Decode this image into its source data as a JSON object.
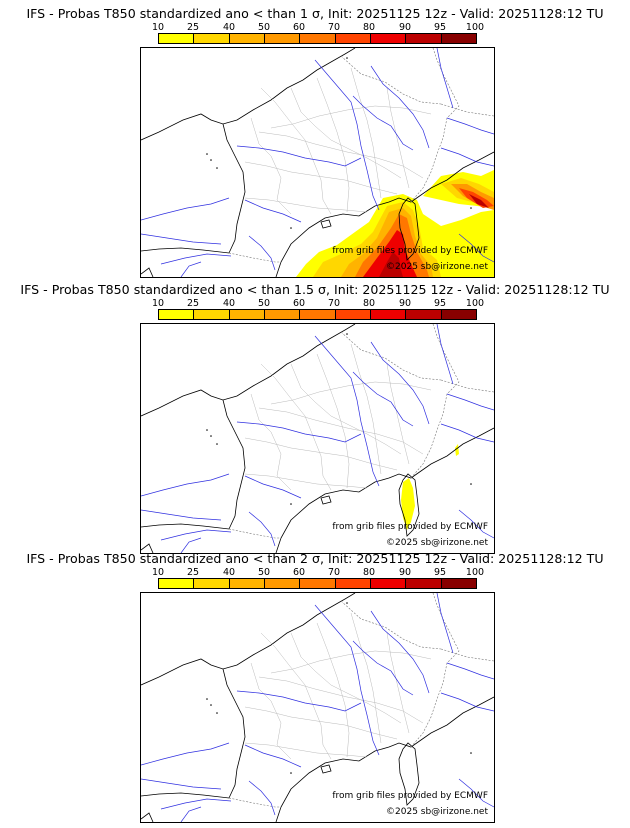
{
  "colorbar": {
    "ticks": [
      "10",
      "25",
      "40",
      "50",
      "60",
      "70",
      "80",
      "90",
      "95",
      "100"
    ],
    "colors": [
      "#ffff00",
      "#ffd700",
      "#ffb300",
      "#ff9900",
      "#ff7700",
      "#ff4400",
      "#ee0000",
      "#bb0000",
      "#880000"
    ]
  },
  "panels": [
    {
      "title": "IFS - Probas T850  standardized ano < than 1 σ, Init: 20251125 12z - Valid: 20251128:12 TU",
      "map": {
        "source_credit": "from grib files provided by ECMWF",
        "copyright": "©2025 sb@irizone.net"
      }
    },
    {
      "title": "IFS - Probas T850  standardized ano < than 1.5 σ, Init: 20251125 12z - Valid: 20251128:12 TU",
      "map": {
        "source_credit": "from grib files provided by ECMWF",
        "copyright": "©2025 sb@irizone.net"
      }
    },
    {
      "title": "IFS - Probas T850  standardized ano < than 2 σ, Init: 20251125 12z - Valid: 20251128:12 TU",
      "map": {
        "source_credit": "from grib files provided by ECMWF",
        "copyright": "©2025 sb@irizone.net"
      }
    }
  ]
}
